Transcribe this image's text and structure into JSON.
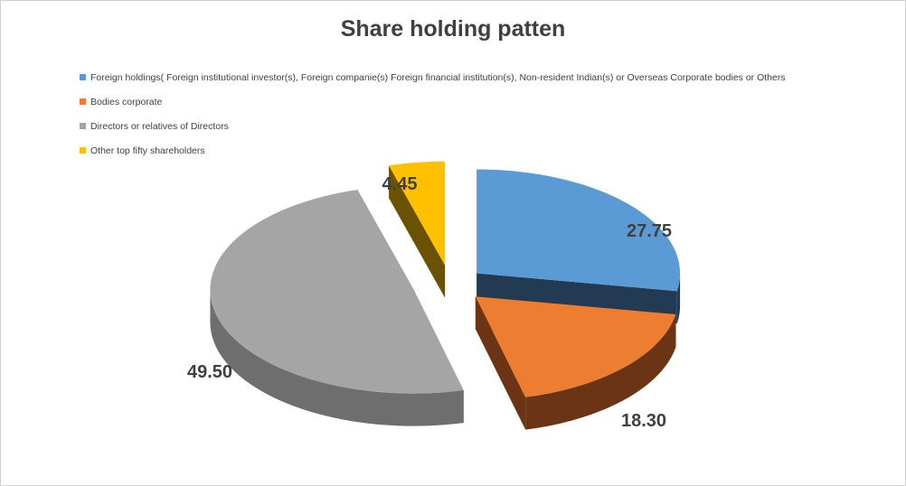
{
  "chart_data": {
    "type": "pie",
    "title": "Share holding patten",
    "legend_position": "top-left",
    "exploded": true,
    "three_d": true,
    "series": [
      {
        "name": "Foreign holdings( Foreign institutional  investor(s), Foreign companie(s) Foreign financial institution(s), Non-resident Indian(s) or Overseas Corporate  bodies or Others",
        "value": 27.75,
        "label": "27.75",
        "color": "#5B9BD5",
        "side_color": "#223A52"
      },
      {
        "name": "Bodies corporate",
        "value": 18.3,
        "label": "18.30",
        "color": "#ED7D31",
        "side_color": "#6B3414"
      },
      {
        "name": "Directors or relatives of Directors",
        "value": 49.5,
        "label": "49.50",
        "color": "#A5A5A5",
        "side_color": "#6E6E6E"
      },
      {
        "name": "Other top fifty shareholders",
        "value": 4.45,
        "label": "4.45",
        "color": "#FFC000",
        "side_color": "#6B5200"
      }
    ]
  }
}
